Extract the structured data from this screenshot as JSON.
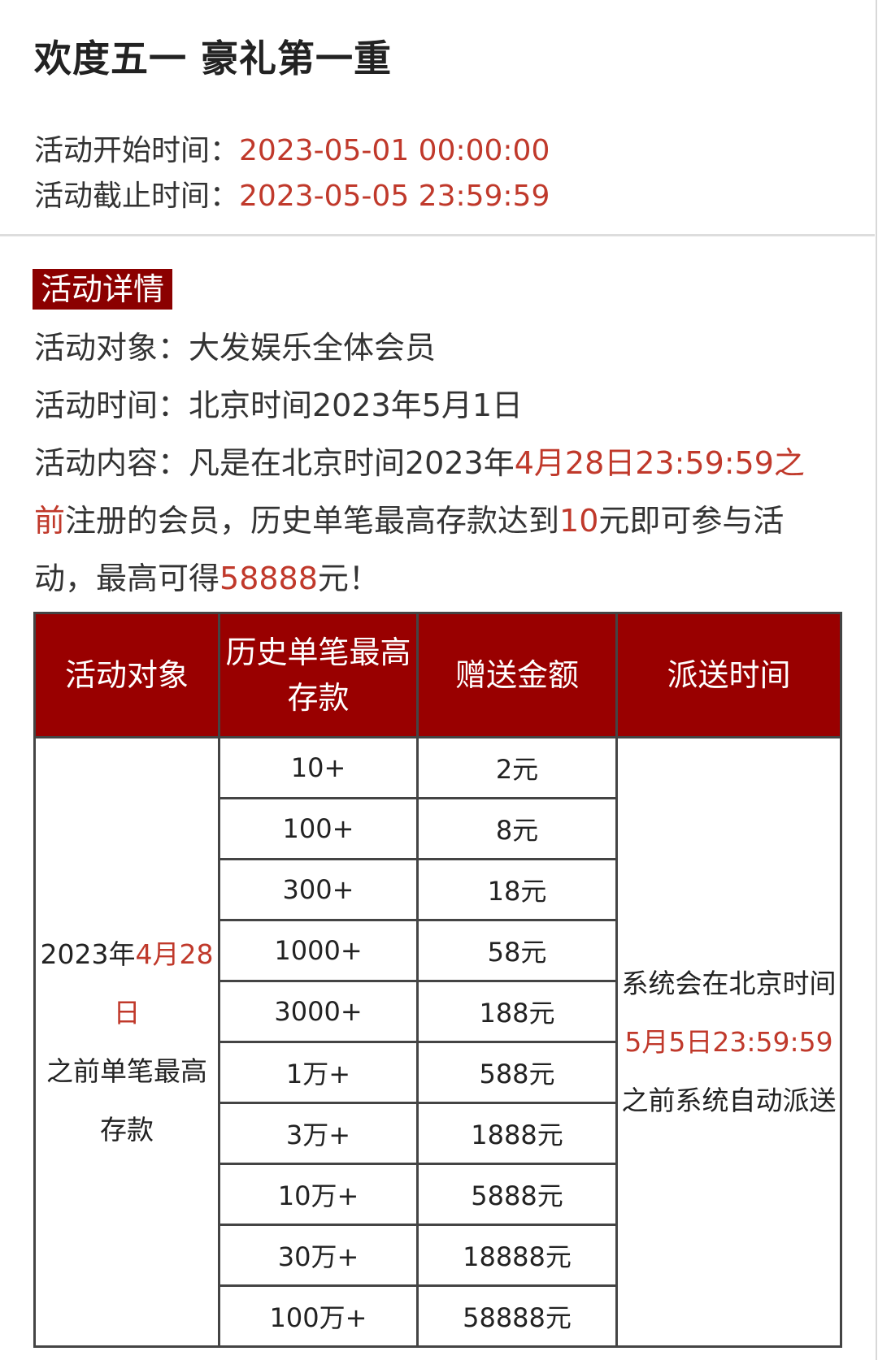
{
  "title": "欢度五一 豪礼第一重",
  "start": {
    "label": "活动开始时间：",
    "value": "2023-05-01 00:00:00"
  },
  "end": {
    "label": "活动截止时间：",
    "value": "2023-05-05 23:59:59"
  },
  "badge": "活动详情",
  "details": {
    "target": "活动对象：大发娱乐全体会员",
    "time": "活动时间：北京时间2023年5月1日",
    "content": {
      "p1": "活动内容：凡是在北京时间2023年",
      "r1": "4月28日23:59:59之前",
      "p2": "注册的会员，历史单笔最高存款达到",
      "r2": "10",
      "p3": "元即可参与活动，最高可得",
      "r3": "58888",
      "p4": "元！"
    }
  },
  "table": {
    "headers": [
      "活动对象",
      "历史单笔最高存款",
      "赠送金额",
      "派送时间"
    ],
    "target_cell": {
      "p1": "2023年",
      "r1": "4月28日",
      "p2": "之前单笔最高存款"
    },
    "rows": [
      [
        "10+",
        "2元"
      ],
      [
        "100+",
        "8元"
      ],
      [
        "300+",
        "18元"
      ],
      [
        "1000+",
        "58元"
      ],
      [
        "3000+",
        "188元"
      ],
      [
        "1万+",
        "588元"
      ],
      [
        "3万+",
        "1888元"
      ],
      [
        "10万+",
        "5888元"
      ],
      [
        "30万+",
        "18888元"
      ],
      [
        "100万+",
        "58888元"
      ]
    ],
    "time_cell": {
      "p1": "系统会在北京时间",
      "r1": "5月5日23:59:59",
      "p2": "之前系统自动派送"
    }
  },
  "colors": {
    "accent_red": "#c0392b",
    "header_bg": "#990000"
  }
}
